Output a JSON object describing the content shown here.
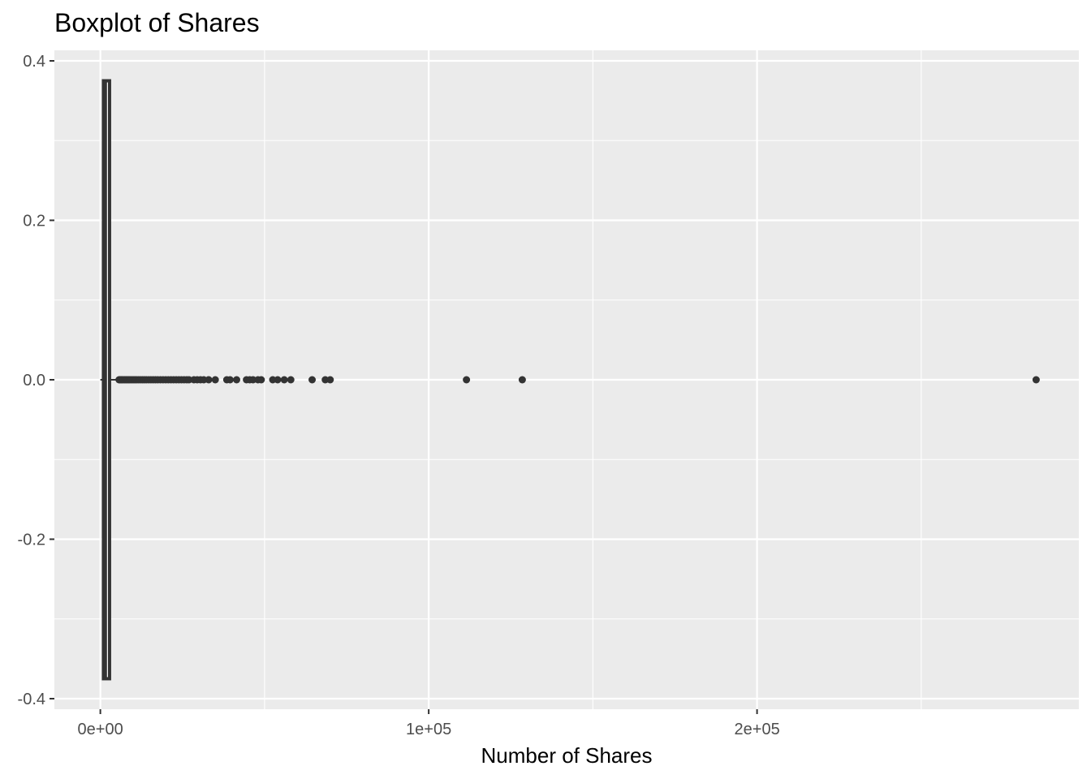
{
  "chart_data": {
    "type": "boxplot",
    "title": "Boxplot of Shares",
    "xlabel": "Number of Shares",
    "ylabel": "",
    "xlim": [
      -14000,
      298000
    ],
    "ylim": [
      -0.4,
      0.4
    ],
    "x_ticks": [
      {
        "value": 0,
        "label": "0e+00"
      },
      {
        "value": 100000,
        "label": "1e+05"
      },
      {
        "value": 200000,
        "label": "2e+05"
      }
    ],
    "y_ticks": [
      {
        "value": 0.4,
        "label": "0.4"
      },
      {
        "value": 0.2,
        "label": "0.2"
      },
      {
        "value": 0.0,
        "label": "0.0"
      },
      {
        "value": -0.2,
        "label": "-0.2"
      },
      {
        "value": -0.4,
        "label": "-0.4"
      }
    ],
    "x_minor_ticks": [
      50000,
      150000,
      250000
    ],
    "y_minor_ticks": [
      0.3,
      0.1,
      -0.1,
      -0.3
    ],
    "grid": true,
    "colors": {
      "panel_background": "#ebebeb",
      "grid": "#ffffff",
      "box": "#333333",
      "outlier": "#333333"
    },
    "box": {
      "y_center": 0.0,
      "half_width": 0.375,
      "q1": 946,
      "median": 1400,
      "q3": 2800,
      "whisker_low": 1,
      "whisker_high": 5600
    },
    "outliers": [
      5700,
      6000,
      6300,
      6600,
      7000,
      7400,
      7800,
      8200,
      8600,
      9000,
      9500,
      10000,
      10500,
      11000,
      11600,
      12200,
      12800,
      13400,
      14000,
      14700,
      15400,
      16100,
      16800,
      17500,
      18300,
      19100,
      19900,
      20700,
      21500,
      22300,
      23100,
      23900,
      24700,
      25500,
      26300,
      27000,
      28500,
      29500,
      30500,
      31500,
      33000,
      35000,
      38500,
      39500,
      41500,
      44500,
      45500,
      46500,
      48000,
      49000,
      52500,
      54000,
      56000,
      58000,
      64500,
      68500,
      70000,
      111500,
      128500,
      285000
    ]
  }
}
